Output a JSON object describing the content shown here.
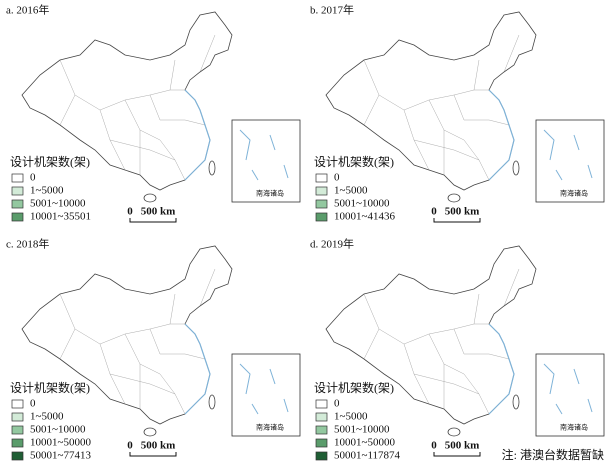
{
  "panels": [
    {
      "label": "a. 2016年",
      "legend_title": "设计机架数(架)",
      "legend": [
        {
          "label": "0",
          "color": "#ffffff"
        },
        {
          "label": "1~5000",
          "color": "#d3ebd8"
        },
        {
          "label": "5001~10000",
          "color": "#93c8a0"
        },
        {
          "label": "10001~35501",
          "color": "#5a9c6b"
        }
      ],
      "scale": {
        "zero": "0",
        "distance": "500 km"
      },
      "inset_label": "南海诸岛"
    },
    {
      "label": "b. 2017年",
      "legend_title": "设计机架数(架)",
      "legend": [
        {
          "label": "0",
          "color": "#ffffff"
        },
        {
          "label": "1~5000",
          "color": "#d3ebd8"
        },
        {
          "label": "5001~10000",
          "color": "#93c8a0"
        },
        {
          "label": "10001~41436",
          "color": "#5a9c6b"
        }
      ],
      "scale": {
        "zero": "0",
        "distance": "500 km"
      },
      "inset_label": "南海诸岛"
    },
    {
      "label": "c. 2018年",
      "legend_title": "设计机架数(架)",
      "legend": [
        {
          "label": "0",
          "color": "#ffffff"
        },
        {
          "label": "1~5000",
          "color": "#d3ebd8"
        },
        {
          "label": "5001~10000",
          "color": "#93c8a0"
        },
        {
          "label": "10001~50000",
          "color": "#5a9c6b"
        },
        {
          "label": "50001~77413",
          "color": "#1f5e34"
        }
      ],
      "scale": {
        "zero": "0",
        "distance": "500 km"
      },
      "inset_label": "南海诸岛"
    },
    {
      "label": "d. 2019年",
      "legend_title": "设计机架数(架)",
      "legend": [
        {
          "label": "0",
          "color": "#ffffff"
        },
        {
          "label": "1~5000",
          "color": "#d3ebd8"
        },
        {
          "label": "5001~10000",
          "color": "#93c8a0"
        },
        {
          "label": "10001~50000",
          "color": "#5a9c6b"
        },
        {
          "label": "50001~117874",
          "color": "#1f5e34"
        }
      ],
      "scale": {
        "zero": "0",
        "distance": "500 km"
      },
      "inset_label": "南海诸岛"
    }
  ],
  "note": "注: 港澳台数据暂缺"
}
